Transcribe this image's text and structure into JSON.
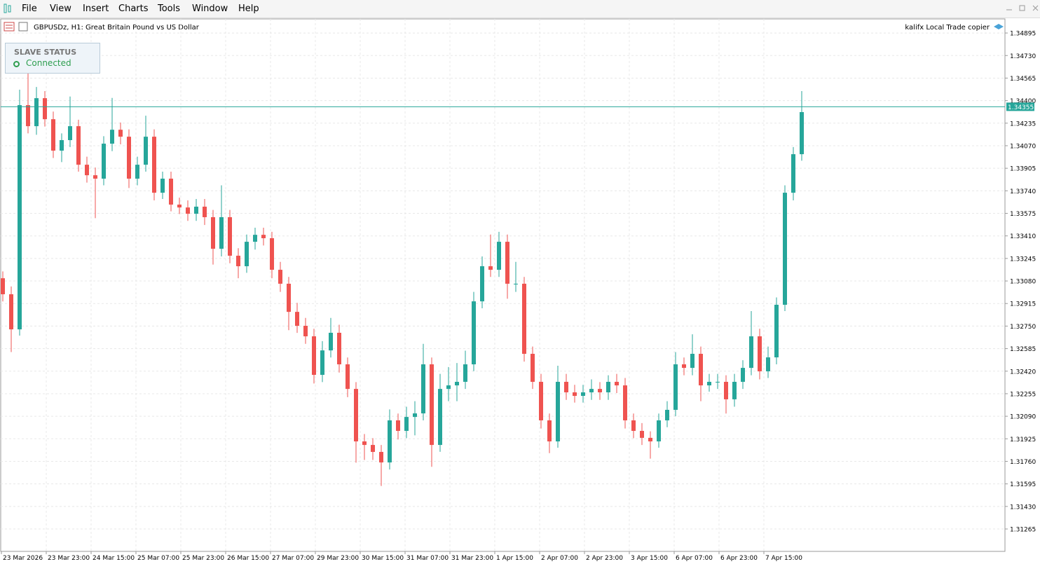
{
  "menu": [
    "File",
    "View",
    "Insert",
    "Charts",
    "Tools",
    "Window",
    "Help"
  ],
  "chart_header": {
    "symbol": "GBPUSDz, H1:  Great Britain Pound vs US Dollar",
    "expert": "kalifx Local Trade copier"
  },
  "status_panel": {
    "title": "SLAVE STATUS",
    "state": "Connected"
  },
  "chart_data": {
    "type": "candlestick",
    "up_color": "#26a69a",
    "down_color": "#ef5350",
    "grid": true,
    "ylim": [
      1.31101,
      1.34998
    ],
    "yticks": [
      1.34895,
      {
        "value": 1.3473,
        "label": "1.34730"
      },
      1.34565,
      {
        "value": 1.344,
        "label": "1.34400"
      },
      1.34235,
      {
        "value": 1.3407,
        "label": "1.34070"
      },
      1.33905,
      {
        "value": 1.3374,
        "label": "1.33740"
      },
      1.33575,
      {
        "value": 1.3341,
        "label": "1.33410"
      },
      1.33245,
      {
        "value": 1.3308,
        "label": "1.33080"
      },
      1.32915,
      {
        "value": 1.3275,
        "label": "1.32750"
      },
      1.32585,
      {
        "value": 1.3242,
        "label": "1.32420"
      },
      1.32255,
      {
        "value": 1.3209,
        "label": "1.32090"
      },
      1.31925,
      {
        "value": 1.3176,
        "label": "1.31760"
      },
      1.31595,
      {
        "value": 1.3143,
        "label": "1.31430"
      },
      1.31265
    ],
    "x_labels": [
      "23 Mar 2026",
      "23 Mar 23:00",
      "24 Mar 15:00",
      "25 Mar 07:00",
      "25 Mar 23:00",
      "26 Mar 15:00",
      "27 Mar 07:00",
      "29 Mar 23:00",
      "30 Mar 15:00",
      "31 Mar 07:00",
      "31 Mar 23:00",
      "1 Apr 15:00",
      "2 Apr 07:00",
      "2 Apr 23:00",
      "3 Apr 15:00",
      "6 Apr 07:00",
      "6 Apr 23:00",
      "7 Apr 15:00"
    ],
    "current_price": 1.34355,
    "candles": [
      [
        1.331,
        1.3315,
        1.3293,
        1.32983
      ],
      [
        1.32983,
        1.3304,
        1.3256,
        1.32726
      ],
      [
        1.32726,
        1.3448,
        1.3268,
        1.34367
      ],
      [
        1.34367,
        1.3462,
        1.3416,
        1.34213
      ],
      [
        1.34213,
        1.345,
        1.3415,
        1.34418
      ],
      [
        1.34418,
        1.3447,
        1.3421,
        1.34264
      ],
      [
        1.34264,
        1.3432,
        1.3398,
        1.34034
      ],
      [
        1.34034,
        1.3416,
        1.3395,
        1.34111
      ],
      [
        1.34111,
        1.3443,
        1.3406,
        1.34213
      ],
      [
        1.34213,
        1.3426,
        1.3388,
        1.33931
      ],
      [
        1.33931,
        1.3399,
        1.338,
        1.33854
      ],
      [
        1.33854,
        1.3391,
        1.3354,
        1.33829
      ],
      [
        1.33829,
        1.3414,
        1.3378,
        1.34085
      ],
      [
        1.34085,
        1.3442,
        1.3403,
        1.34187
      ],
      [
        1.34187,
        1.3424,
        1.3408,
        1.34136
      ],
      [
        1.34136,
        1.3419,
        1.3376,
        1.33829
      ],
      [
        1.33829,
        1.3399,
        1.3378,
        1.33931
      ],
      [
        1.33931,
        1.3429,
        1.3388,
        1.34136
      ],
      [
        1.34136,
        1.3419,
        1.3367,
        1.33726
      ],
      [
        1.33726,
        1.3388,
        1.3368,
        1.33829
      ],
      [
        1.33829,
        1.3388,
        1.3359,
        1.33639
      ],
      [
        1.33639,
        1.3369,
        1.3357,
        1.33618
      ],
      [
        1.33618,
        1.3367,
        1.3352,
        1.33572
      ],
      [
        1.33572,
        1.3368,
        1.3352,
        1.33624
      ],
      [
        1.33624,
        1.3368,
        1.3349,
        1.33547
      ],
      [
        1.33547,
        1.336,
        1.332,
        1.33316
      ],
      [
        1.33316,
        1.3378,
        1.3326,
        1.33547
      ],
      [
        1.33547,
        1.336,
        1.3321,
        1.33265
      ],
      [
        1.33265,
        1.3332,
        1.331,
        1.33188
      ],
      [
        1.33188,
        1.3342,
        1.3314,
        1.33367
      ],
      [
        1.33367,
        1.3347,
        1.3331,
        1.33418
      ],
      [
        1.33418,
        1.3347,
        1.3334,
        1.33393
      ],
      [
        1.33393,
        1.3344,
        1.331,
        1.33162
      ],
      [
        1.33162,
        1.3322,
        1.33,
        1.3306
      ],
      [
        1.3306,
        1.3311,
        1.3272,
        1.32854
      ],
      [
        1.32854,
        1.3292,
        1.327,
        1.32752
      ],
      [
        1.32752,
        1.3281,
        1.3262,
        1.32675
      ],
      [
        1.32675,
        1.3273,
        1.3233,
        1.32393
      ],
      [
        1.32393,
        1.3264,
        1.3234,
        1.32572
      ],
      [
        1.32572,
        1.3281,
        1.3252,
        1.32701
      ],
      [
        1.32701,
        1.3276,
        1.3241,
        1.3247
      ],
      [
        1.3247,
        1.3252,
        1.3223,
        1.3229
      ],
      [
        1.3229,
        1.3234,
        1.3175,
        1.31906
      ],
      [
        1.31906,
        1.3196,
        1.3177,
        1.3188
      ],
      [
        1.3188,
        1.3193,
        1.3177,
        1.31829
      ],
      [
        1.31829,
        1.3188,
        1.3158,
        1.31752
      ],
      [
        1.31752,
        1.3214,
        1.317,
        1.3206
      ],
      [
        1.3206,
        1.3211,
        1.3192,
        1.31983
      ],
      [
        1.31983,
        1.3216,
        1.3193,
        1.32085
      ],
      [
        1.32085,
        1.322,
        1.3195,
        1.32111
      ],
      [
        1.32111,
        1.3262,
        1.3206,
        1.3247
      ],
      [
        1.3247,
        1.3252,
        1.3172,
        1.3188
      ],
      [
        1.3188,
        1.324,
        1.3183,
        1.3229
      ],
      [
        1.3229,
        1.3245,
        1.322,
        1.32316
      ],
      [
        1.32316,
        1.3248,
        1.322,
        1.32342
      ],
      [
        1.32342,
        1.3257,
        1.3229,
        1.3247
      ],
      [
        1.3247,
        1.33,
        1.3242,
        1.32931
      ],
      [
        1.32931,
        1.3326,
        1.3288,
        1.33188
      ],
      [
        1.33188,
        1.3342,
        1.3311,
        1.33162
      ],
      [
        1.33162,
        1.3344,
        1.3311,
        1.33367
      ],
      [
        1.33367,
        1.3342,
        1.3295,
        1.3306
      ],
      [
        1.3306,
        1.3322,
        1.33,
        1.3306
      ],
      [
        1.3306,
        1.3311,
        1.3249,
        1.32547
      ],
      [
        1.32547,
        1.326,
        1.3229,
        1.32342
      ],
      [
        1.32342,
        1.324,
        1.32,
        1.3206
      ],
      [
        1.3206,
        1.3211,
        1.3182,
        1.31906
      ],
      [
        1.31906,
        1.3246,
        1.3186,
        1.32342
      ],
      [
        1.32342,
        1.324,
        1.3221,
        1.32265
      ],
      [
        1.32265,
        1.3232,
        1.3219,
        1.32239
      ],
      [
        1.32239,
        1.3232,
        1.3219,
        1.32265
      ],
      [
        1.32265,
        1.3236,
        1.3221,
        1.3229
      ],
      [
        1.3229,
        1.3234,
        1.3221,
        1.32265
      ],
      [
        1.32265,
        1.3239,
        1.3221,
        1.32342
      ],
      [
        1.32342,
        1.324,
        1.3226,
        1.32316
      ],
      [
        1.32316,
        1.3237,
        1.32,
        1.3206
      ],
      [
        1.3206,
        1.3211,
        1.3193,
        1.31983
      ],
      [
        1.31983,
        1.3204,
        1.3188,
        1.31932
      ],
      [
        1.31932,
        1.3198,
        1.3178,
        1.31906
      ],
      [
        1.31906,
        1.3211,
        1.3186,
        1.3206
      ],
      [
        1.3206,
        1.322,
        1.3201,
        1.32137
      ],
      [
        1.32137,
        1.3256,
        1.3209,
        1.3247
      ],
      [
        1.3247,
        1.3252,
        1.3239,
        1.32444
      ],
      [
        1.32444,
        1.3269,
        1.3239,
        1.32547
      ],
      [
        1.32547,
        1.326,
        1.322,
        1.32316
      ],
      [
        1.32316,
        1.324,
        1.3227,
        1.32342
      ],
      [
        1.32342,
        1.324,
        1.3229,
        1.32342
      ],
      [
        1.32342,
        1.3239,
        1.3211,
        1.32214
      ],
      [
        1.32214,
        1.324,
        1.3216,
        1.32342
      ],
      [
        1.32342,
        1.325,
        1.3229,
        1.32444
      ],
      [
        1.32444,
        1.3286,
        1.3239,
        1.32675
      ],
      [
        1.32675,
        1.3273,
        1.3236,
        1.32419
      ],
      [
        1.32419,
        1.326,
        1.3237,
        1.32521
      ],
      [
        1.32521,
        1.3296,
        1.3247,
        1.32906
      ],
      [
        1.32906,
        1.3378,
        1.3286,
        1.33726
      ],
      [
        1.33726,
        1.3406,
        1.3367,
        1.34008
      ],
      [
        1.34008,
        1.3447,
        1.3396,
        1.34316
      ]
    ]
  }
}
